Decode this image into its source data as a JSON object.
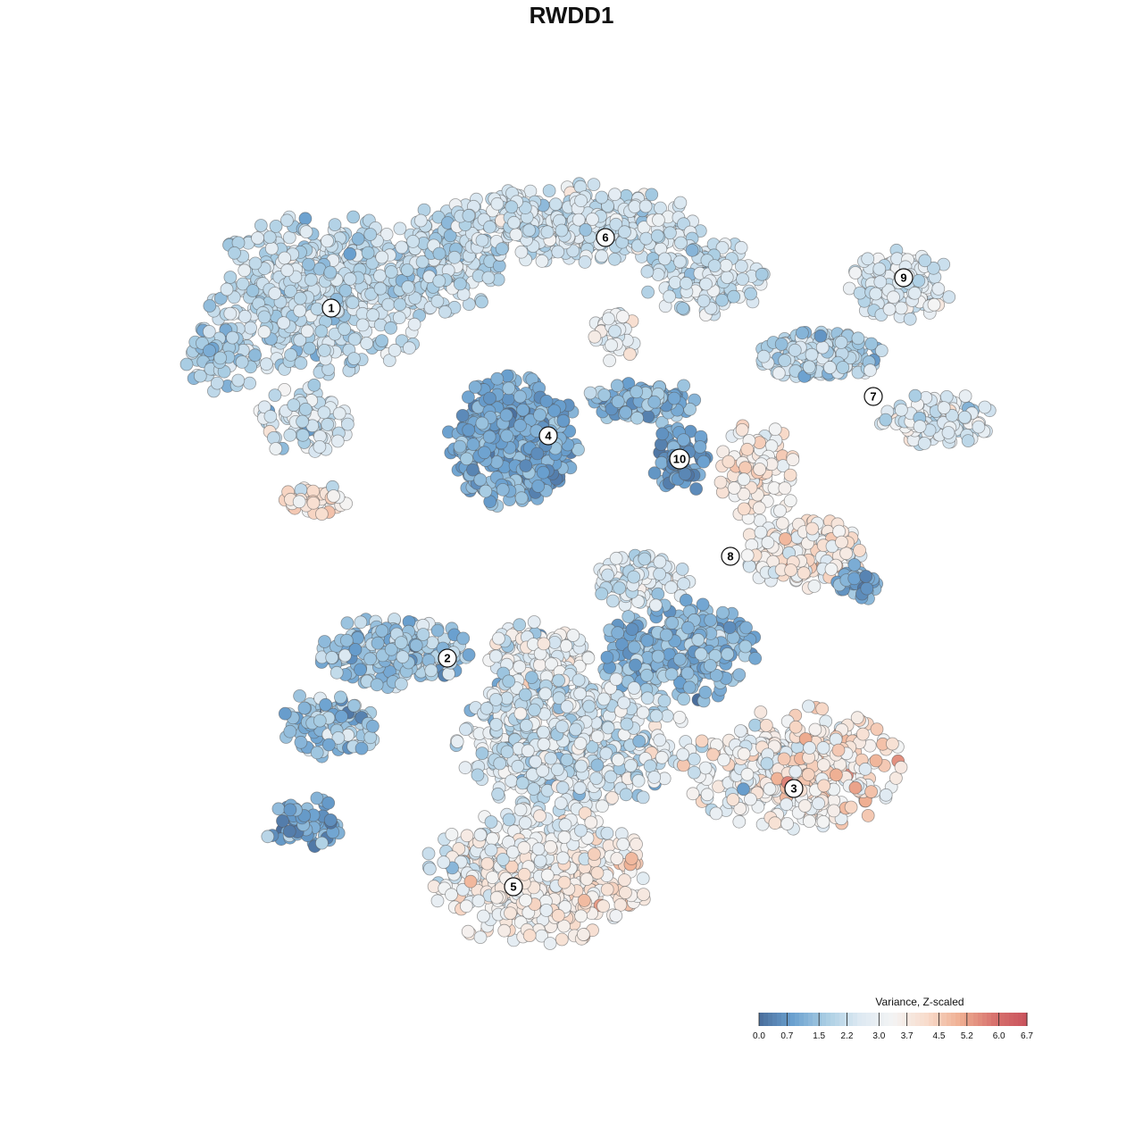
{
  "chart_data": {
    "type": "scatter",
    "title": "RWDD1",
    "xlabel": "",
    "ylabel": "",
    "xlim": [
      0,
      1280
    ],
    "ylim": [
      0,
      1280
    ],
    "grid": false,
    "point_value_range": [
      0.0,
      6.7
    ],
    "colorbar": {
      "title": "Variance, Z-scaled",
      "ticks": [
        "0.0",
        "0.7",
        "1.5",
        "2.2",
        "3.0",
        "3.7",
        "4.5",
        "5.2",
        "6.0",
        "6.7"
      ],
      "colors": [
        "#4a6e9c",
        "#6aa0cf",
        "#a9cde3",
        "#dde9f2",
        "#f4f4f4",
        "#f8dccc",
        "#efaf92",
        "#d8736e",
        "#c9525c"
      ],
      "placement": "bottom-right"
    },
    "clusters": [
      {
        "label": "1",
        "x": 371,
        "y": 935,
        "value": 2.1
      },
      {
        "label": "2",
        "x": 501,
        "y": 543,
        "value": 1.2
      },
      {
        "label": "3",
        "x": 889,
        "y": 397,
        "value": 3.9
      },
      {
        "label": "4",
        "x": 614,
        "y": 792,
        "value": 1.0
      },
      {
        "label": "5",
        "x": 575,
        "y": 287,
        "value": 3.6
      },
      {
        "label": "6",
        "x": 678,
        "y": 1014,
        "value": 2.2
      },
      {
        "label": "7",
        "x": 978,
        "y": 836,
        "value": 2.6
      },
      {
        "label": "8",
        "x": 818,
        "y": 657,
        "value": 3.4
      },
      {
        "label": "9",
        "x": 1012,
        "y": 969,
        "value": 2.4
      },
      {
        "label": "10",
        "x": 761,
        "y": 766,
        "value": 0.8
      }
    ]
  }
}
